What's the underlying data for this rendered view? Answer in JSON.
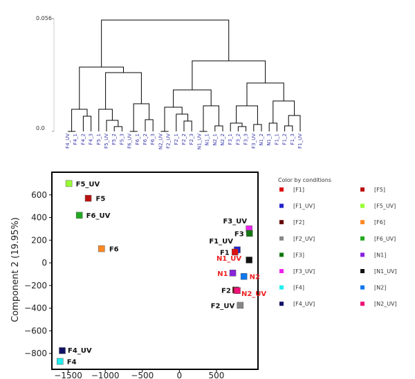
{
  "chart_data": [
    {
      "type": "dendrogram",
      "ylim": [
        0.0,
        0.056
      ],
      "ytick_labels": [
        "0.056",
        "0.0"
      ],
      "leaves": [
        "F4_UV",
        "F4_1",
        "F4_2",
        "F4_3",
        "F5_1",
        "F5_UV",
        "F5_2",
        "F5_3",
        "F6_UV",
        "F6_1",
        "F6_2",
        "F6_3",
        "N2_UV",
        "F2_UV",
        "F2_1",
        "F2_2",
        "F2_3",
        "N1_UV",
        "N1_1",
        "N2_1",
        "N2_2",
        "F3_1",
        "F3_2",
        "F3_3",
        "F3_UV",
        "N1_2",
        "N1_3",
        "F1_1",
        "F1_2",
        "F1_3",
        "F1_UV"
      ]
    },
    {
      "type": "scatter",
      "xlabel": "",
      "ylabel": "Component 2 (19.95%)",
      "xlim": [
        -1720,
        1060
      ],
      "ylim": [
        -940,
        800
      ],
      "xticks": [
        -1500,
        -1000,
        -500,
        0,
        500
      ],
      "xtick_labels": [
        "−1500",
        "−1000",
        "−500",
        "0",
        "500"
      ],
      "yticks": [
        600,
        400,
        200,
        0,
        -200,
        -400,
        -600,
        -800
      ],
      "ytick_labels": [
        "600",
        "400",
        "200",
        "0",
        "−200",
        "−400",
        "−600",
        "−800"
      ],
      "points": [
        {
          "label": "F5_UV",
          "x": -1490,
          "y": 700,
          "color": "#99ff33",
          "label_color": "#111111"
        },
        {
          "label": "F5",
          "x": -1230,
          "y": 570,
          "color": "#bb1111",
          "label_color": "#111111"
        },
        {
          "label": "F6_UV",
          "x": -1350,
          "y": 420,
          "color": "#22aa22",
          "label_color": "#111111"
        },
        {
          "label": "F6",
          "x": -1050,
          "y": 125,
          "color": "#ff8822",
          "label_color": "#111111"
        },
        {
          "label": "F3_UV",
          "x": 940,
          "y": 300,
          "color": "#ee22ee",
          "label_color": "#111111"
        },
        {
          "label": "F3",
          "x": 945,
          "y": 260,
          "color": "#117711",
          "label_color": "#111111"
        },
        {
          "label": "F1_UV",
          "x": 780,
          "y": 115,
          "color": "#2222cc",
          "label_color": "#111111"
        },
        {
          "label": "F1",
          "x": 750,
          "y": 95,
          "color": "#dd1111",
          "label_color": "#111111"
        },
        {
          "label": "N1_UV",
          "x": 940,
          "y": 25,
          "color": "#111111",
          "label_color": "#ee2222"
        },
        {
          "label": "N1",
          "x": 720,
          "y": -90,
          "color": "#8822dd",
          "label_color": "#ee2222"
        },
        {
          "label": "N2",
          "x": 870,
          "y": -120,
          "color": "#1177ee",
          "label_color": "#ee2222"
        },
        {
          "label": "F2",
          "x": 760,
          "y": -240,
          "color": "#660000",
          "label_color": "#111111"
        },
        {
          "label": "N2_UV",
          "x": 780,
          "y": -245,
          "color": "#ee1177",
          "label_color": "#ee2222"
        },
        {
          "label": "F2_UV",
          "x": 820,
          "y": -375,
          "color": "#888888",
          "label_color": "#111111"
        },
        {
          "label": "F4_UV",
          "x": -1580,
          "y": -775,
          "color": "#111166",
          "label_color": "#111111"
        },
        {
          "label": "F4",
          "x": -1610,
          "y": -870,
          "color": "#22eeee",
          "label_color": "#111111"
        }
      ],
      "legend": {
        "title": "Color by conditions",
        "items": [
          {
            "label": "[F1]",
            "color": "#dd1111"
          },
          {
            "label": "[F5]",
            "color": "#bb1111"
          },
          {
            "label": "[F1_UV]",
            "color": "#2222cc"
          },
          {
            "label": "[F5_UV]",
            "color": "#99ff33"
          },
          {
            "label": "[F2]",
            "color": "#660000"
          },
          {
            "label": "[F6]",
            "color": "#ff8822"
          },
          {
            "label": "[F2_UV]",
            "color": "#888888"
          },
          {
            "label": "[F6_UV]",
            "color": "#22aa22"
          },
          {
            "label": "[F3]",
            "color": "#117711"
          },
          {
            "label": "[N1]",
            "color": "#8822dd"
          },
          {
            "label": "[F3_UV]",
            "color": "#ee22ee"
          },
          {
            "label": "[N1_UV]",
            "color": "#111111"
          },
          {
            "label": "[F4]",
            "color": "#22eeee"
          },
          {
            "label": "[N2]",
            "color": "#1177ee"
          },
          {
            "label": "[F4_UV]",
            "color": "#111166"
          },
          {
            "label": "[N2_UV]",
            "color": "#ee1177"
          }
        ]
      }
    }
  ]
}
